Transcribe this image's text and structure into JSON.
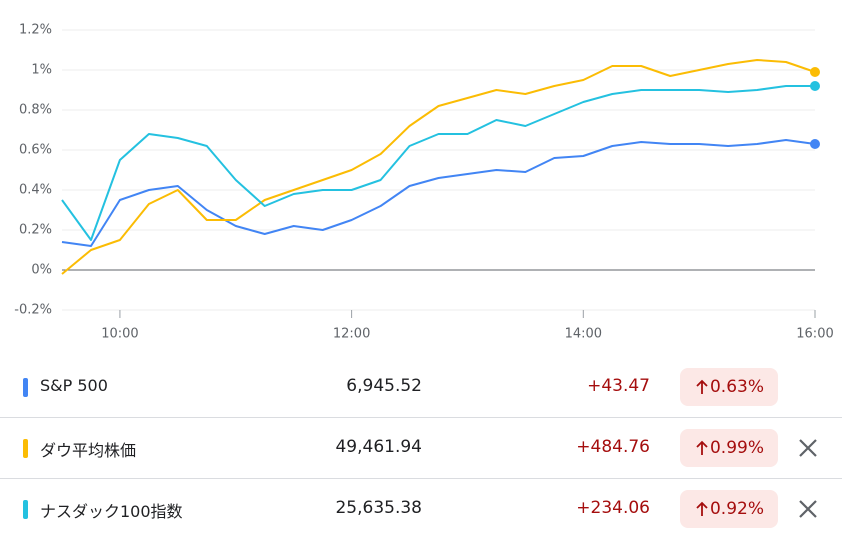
{
  "chart_data": {
    "type": "line",
    "x": [
      "9:30",
      "9:45",
      "10:00",
      "10:15",
      "10:30",
      "10:45",
      "11:00",
      "11:15",
      "11:30",
      "11:45",
      "12:00",
      "12:15",
      "12:30",
      "12:45",
      "13:00",
      "13:15",
      "13:30",
      "13:45",
      "14:00",
      "14:15",
      "14:30",
      "14:45",
      "15:00",
      "15:15",
      "15:30",
      "15:45",
      "16:00"
    ],
    "xlim": [
      "9:30",
      "16:00"
    ],
    "xticks": [
      "10:00",
      "12:00",
      "14:00",
      "16:00"
    ],
    "ylim": [
      -0.2,
      1.2
    ],
    "yticks": [
      {
        "value": -0.2,
        "label": "-0.2%"
      },
      {
        "value": 0,
        "label": "0%"
      },
      {
        "value": 0.2,
        "label": "0.2%"
      },
      {
        "value": 0.4,
        "label": "0.4%"
      },
      {
        "value": 0.6,
        "label": "0.6%"
      },
      {
        "value": 0.8,
        "label": "0.8%"
      },
      {
        "value": 1,
        "label": "1%"
      },
      {
        "value": 1.2,
        "label": "1.2%"
      }
    ],
    "grid": true,
    "series": [
      {
        "name": "S&P 500",
        "color": "#4285f4",
        "values": [
          0.14,
          0.12,
          0.35,
          0.4,
          0.42,
          0.3,
          0.22,
          0.18,
          0.22,
          0.2,
          0.25,
          0.32,
          0.42,
          0.46,
          0.48,
          0.5,
          0.49,
          0.56,
          0.57,
          0.62,
          0.64,
          0.63,
          0.63,
          0.62,
          0.63,
          0.65,
          0.63
        ]
      },
      {
        "name": "ダウ平均株価",
        "color": "#fbbc04",
        "values": [
          -0.02,
          0.1,
          0.15,
          0.33,
          0.4,
          0.25,
          0.25,
          0.35,
          0.4,
          0.45,
          0.5,
          0.58,
          0.72,
          0.82,
          0.86,
          0.9,
          0.88,
          0.92,
          0.95,
          1.02,
          1.02,
          0.97,
          1.0,
          1.03,
          1.05,
          1.04,
          0.99
        ]
      },
      {
        "name": "ナスダック100指数",
        "color": "#24c1e0",
        "values": [
          0.35,
          0.15,
          0.55,
          0.68,
          0.66,
          0.62,
          0.45,
          0.32,
          0.38,
          0.4,
          0.4,
          0.45,
          0.62,
          0.68,
          0.68,
          0.75,
          0.72,
          0.78,
          0.84,
          0.88,
          0.9,
          0.9,
          0.9,
          0.89,
          0.9,
          0.92,
          0.92
        ]
      }
    ]
  },
  "table": {
    "rows": [
      [
        "S&P 500",
        "6,945.52",
        "+43.47",
        "0.63%"
      ],
      [
        "ダウ平均株価",
        "49,461.94",
        "+484.76",
        "0.99%"
      ],
      [
        "ナスダック100指数",
        "25,635.38",
        "+234.06",
        "0.92%"
      ]
    ]
  }
}
